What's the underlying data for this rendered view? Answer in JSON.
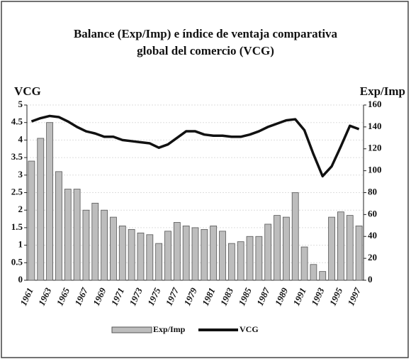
{
  "chart_data": {
    "type": "bar_line",
    "title": "Balance (Exp/Imp) e índice de ventaja comparativa global del comercio (VCG)",
    "ylabel": "VCG",
    "y2label": "Exp/Imp",
    "categories": [
      "1961",
      null,
      "1963",
      null,
      "1965",
      null,
      "1967",
      null,
      "1969",
      null,
      "1971",
      null,
      "1973",
      null,
      "1975",
      null,
      "1977",
      null,
      "1979",
      null,
      "1981",
      null,
      "1983",
      null,
      "1985",
      null,
      "1987",
      null,
      "1989",
      null,
      "1991",
      null,
      "1993",
      null,
      "1995",
      null,
      "1997"
    ],
    "series": [
      {
        "name": "Exp/Imp",
        "type": "bar",
        "color": "#bdbdbd",
        "values": [
          3.4,
          4.05,
          4.5,
          3.1,
          2.6,
          2.6,
          2.0,
          2.2,
          2.0,
          1.8,
          1.55,
          1.45,
          1.35,
          1.3,
          1.05,
          1.4,
          1.65,
          1.55,
          1.5,
          1.45,
          1.55,
          1.4,
          1.05,
          1.1,
          1.25,
          1.25,
          1.6,
          1.85,
          1.8,
          2.5,
          0.95,
          0.45,
          0.25,
          1.8,
          1.95,
          1.85,
          1.55
        ]
      },
      {
        "name": "VCG",
        "type": "line",
        "axis": "y2",
        "color": "#111111",
        "values": [
          145,
          148,
          150,
          149,
          145,
          140,
          136,
          134,
          131,
          131,
          128,
          127,
          126,
          125,
          121,
          124,
          130,
          136,
          136,
          133,
          132,
          132,
          131,
          131,
          133,
          136,
          140,
          143,
          146,
          147,
          137,
          115,
          95,
          104,
          122,
          141,
          138
        ]
      }
    ],
    "ylim": [
      0,
      5
    ],
    "yticks": [
      0,
      0.5,
      1,
      1.5,
      2,
      2.5,
      3,
      3.5,
      4,
      4.5,
      5
    ],
    "y2lim": [
      0,
      160
    ],
    "y2ticks": [
      0,
      20,
      40,
      60,
      80,
      100,
      120,
      140,
      160
    ],
    "grid": true,
    "legend": "bottom"
  }
}
